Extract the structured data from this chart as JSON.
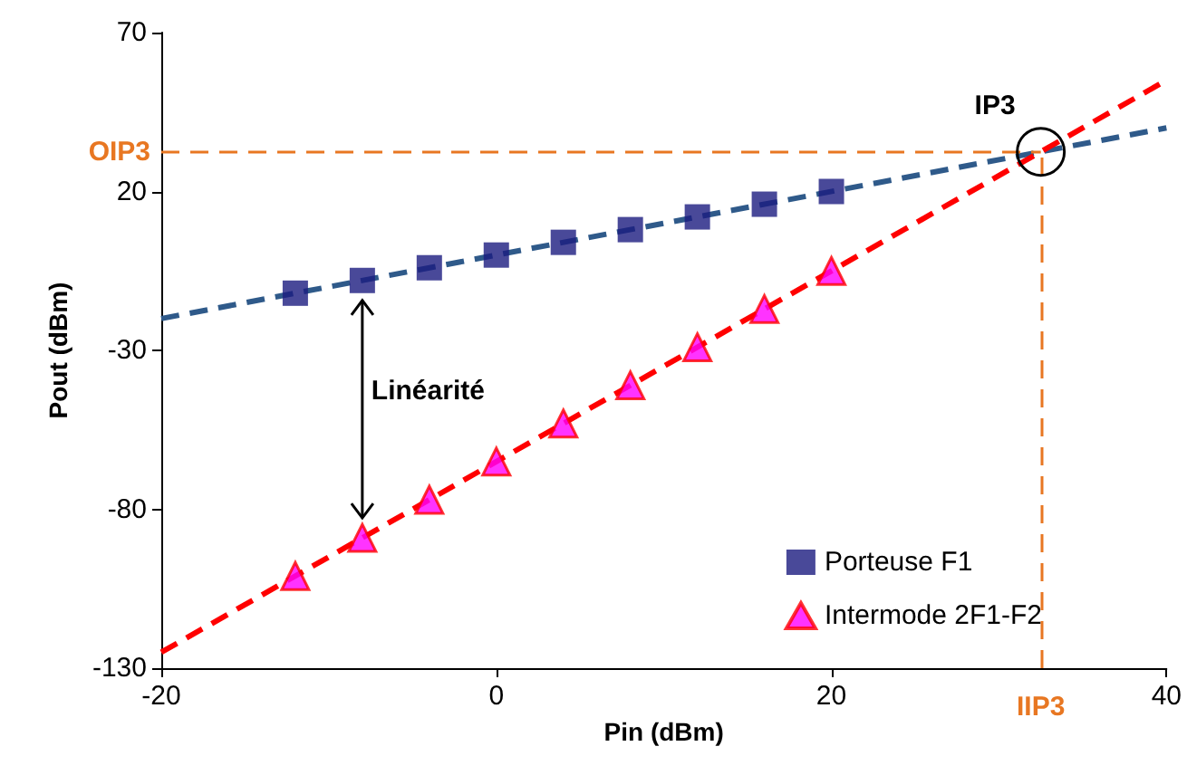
{
  "chart_data": {
    "type": "scatter",
    "xlabel": "Pin (dBm)",
    "ylabel": "Pout (dBm)",
    "xlim": [
      -20,
      40
    ],
    "xticks": [
      -20,
      0,
      20,
      40
    ],
    "ylim": [
      -130,
      70
    ],
    "yticks": [
      -130,
      -80,
      -30,
      20,
      70
    ],
    "grid": false,
    "legend": "bottom right",
    "series": [
      {
        "name": "Porteuse F1",
        "marker": "square",
        "color": "#1c1c80",
        "x": [
          -12,
          -8,
          -4,
          0,
          4,
          8,
          12,
          16,
          20
        ],
        "values": [
          -12,
          -8,
          -4,
          0,
          4,
          8,
          12,
          16,
          20
        ]
      },
      {
        "name": "Intermode 2F1-F2",
        "marker": "triangle",
        "color": "#ff00ff",
        "x": [
          -12,
          -8,
          -4,
          0,
          4,
          8,
          12,
          16,
          20
        ],
        "values": [
          -101,
          -89,
          -77,
          -65,
          -53,
          -41,
          -29,
          -17,
          -5
        ]
      },
      {
        "type": "line",
        "color": "#2f5a8a",
        "line_style": "dashed",
        "marker": "none",
        "x": [
          -20,
          40
        ],
        "values": [
          -20,
          40
        ]
      },
      {
        "type": "line",
        "color": "#ff0000",
        "line_style": "dashed",
        "marker": "none",
        "x": [
          -20,
          40
        ],
        "values": [
          -125,
          55
        ]
      }
    ],
    "ref_lines": [
      {
        "axis": "y",
        "value": 32.5,
        "label": "OIP3",
        "color": "#e87722",
        "line_style": "dashed"
      },
      {
        "axis": "x",
        "value": 32.5,
        "label": "IIP3",
        "color": "#e87722",
        "line_style": "dashed"
      }
    ],
    "annotations": [
      {
        "text": "IP3",
        "x": 32.5,
        "y": 32.5
      },
      "Linéarité"
    ]
  }
}
